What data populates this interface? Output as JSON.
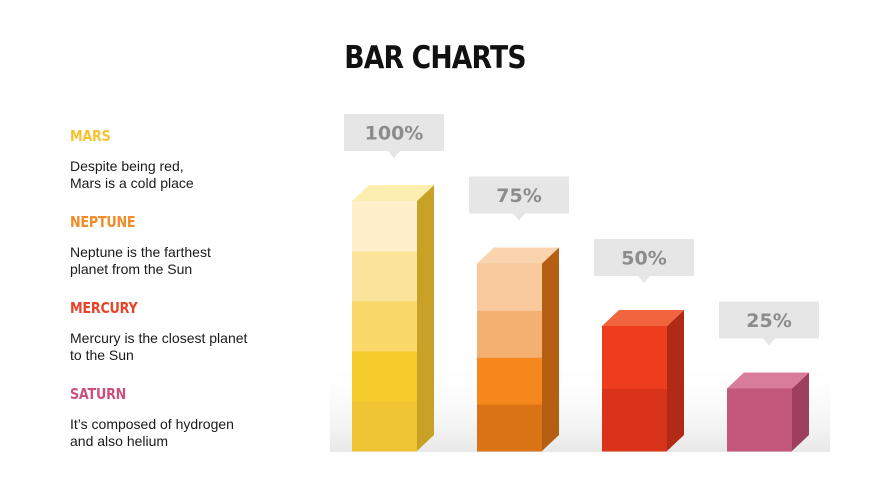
{
  "title": "BAR CHARTS",
  "legend": [
    {
      "name": "MARS",
      "color": "#f4c430",
      "description": "Despite being red,\nMars is a cold place"
    },
    {
      "name": "NEPTUNE",
      "color": "#f28c28",
      "description": "Neptune is the farthest\nplanet from the Sun"
    },
    {
      "name": "MERCURY",
      "color": "#e8442a",
      "description": "Mercury is the closest planet\nto the Sun"
    },
    {
      "name": "SATURN",
      "color": "#c9527a",
      "description": "It’s composed of hydrogen\nand also helium"
    }
  ],
  "chart_data": {
    "type": "bar",
    "categories": [
      "MARS",
      "NEPTUNE",
      "MERCURY",
      "SATURN"
    ],
    "values": [
      100,
      75,
      50,
      25
    ],
    "data_labels": [
      "100%",
      "75%",
      "50%",
      "25%"
    ],
    "ylim": [
      0,
      100
    ],
    "grid": false,
    "segment_colors": [
      [
        "#f0c535",
        "#f6cb2c",
        "#fbd86a",
        "#fce39a",
        "#fdf0cb"
      ],
      [
        "#d97315",
        "#f6871d",
        "#f4b070",
        "#f8c99d"
      ],
      [
        "#d9331a",
        "#ee3c1f"
      ],
      [
        "#c4577c"
      ]
    ],
    "side_colors": [
      "#c8a126",
      "#b55f13",
      "#b02a15",
      "#9e3f60"
    ],
    "top_colors": [
      "#fbeeb0",
      "#fad4ad",
      "#f0653e",
      "#d97b9a"
    ]
  }
}
